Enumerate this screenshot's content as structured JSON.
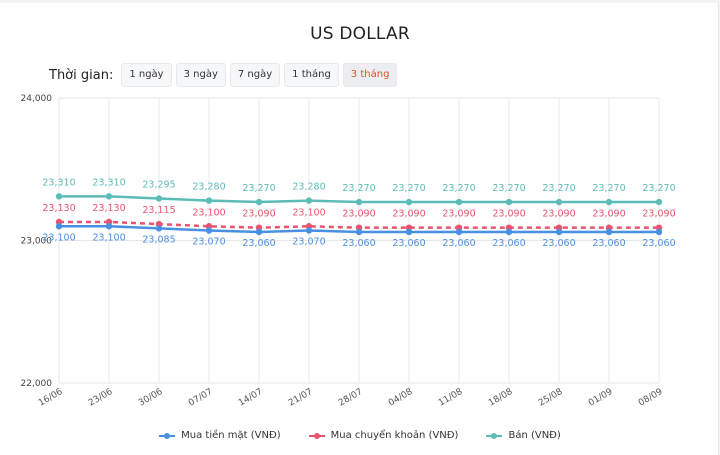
{
  "header": {
    "title": "US DOLLAR"
  },
  "filters": {
    "label": "Thời gian:",
    "options": [
      "1 ngày",
      "3 ngày",
      "7 ngày",
      "1 tháng",
      "3 tháng"
    ],
    "active": "3 tháng"
  },
  "legend": [
    {
      "label": "Mua tiền mặt (VNĐ)",
      "color": "#4a90e2"
    },
    {
      "label": "Mua chuyển khoản (VNĐ)",
      "color": "#e8546f"
    },
    {
      "label": "Bán (VNĐ)",
      "color": "#5bbcb8"
    }
  ],
  "chart_data": {
    "type": "line",
    "title": "US DOLLAR",
    "xlabel": "",
    "ylabel": "",
    "categories": [
      "16/06",
      "23/06",
      "30/06",
      "07/07",
      "14/07",
      "21/07",
      "28/07",
      "04/08",
      "11/08",
      "18/08",
      "25/08",
      "01/09",
      "08/09"
    ],
    "series": [
      {
        "name": "Mua tiền mặt (VNĐ)",
        "color": "#4a90e2",
        "style": "solid",
        "values": [
          23100,
          23100,
          23085,
          23070,
          23060,
          23070,
          23060,
          23060,
          23060,
          23060,
          23060,
          23060,
          23060
        ]
      },
      {
        "name": "Mua chuyển khoản (VNĐ)",
        "color": "#e8546f",
        "style": "dashed",
        "values": [
          23130,
          23130,
          23115,
          23100,
          23090,
          23100,
          23090,
          23090,
          23090,
          23090,
          23090,
          23090,
          23090
        ]
      },
      {
        "name": "Bán (VNĐ)",
        "color": "#5bbcb8",
        "style": "solid",
        "values": [
          23310,
          23310,
          23295,
          23280,
          23270,
          23280,
          23270,
          23270,
          23270,
          23270,
          23270,
          23270,
          23270
        ]
      }
    ],
    "yticks": [
      "22,000",
      "23,000",
      "24,000"
    ],
    "ylim": [
      22000,
      24000
    ],
    "grid": true,
    "legend_position": "bottom",
    "data_labels": true
  }
}
